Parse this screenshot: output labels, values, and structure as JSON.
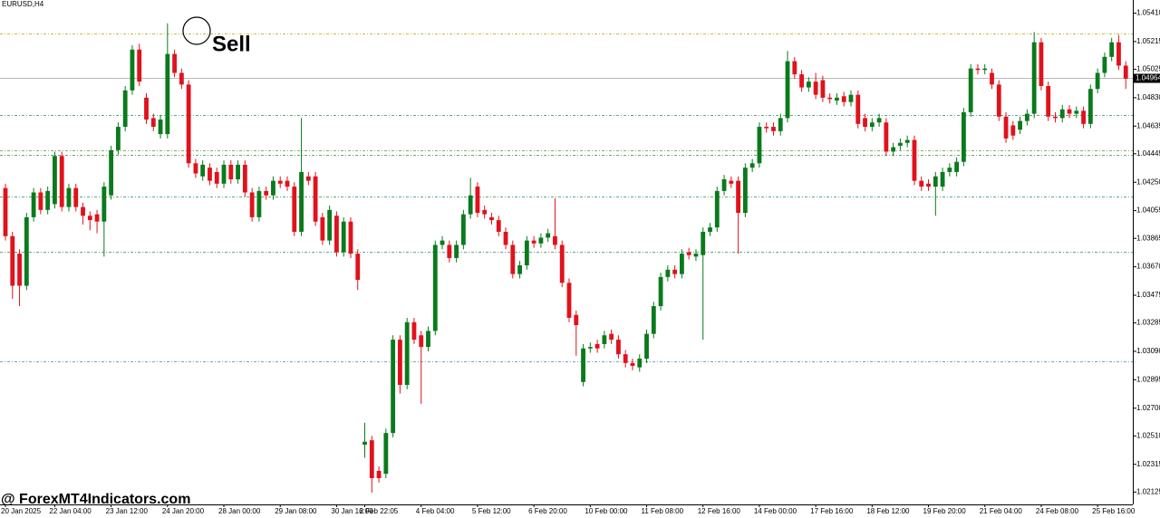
{
  "chart_data": {
    "type": "candlestick",
    "symbol": "EURUSD,H4",
    "annotation": "Sell",
    "watermark": "@ ForexMT4Indicators.com",
    "up_color": "#0a7a1c",
    "down_color": "#e0121c",
    "ylim": [
      1.0204,
      1.055
    ],
    "yticks": [
      {
        "value": 1.0541,
        "label": "1.05410"
      },
      {
        "value": 1.05215,
        "label": "1.05215"
      },
      {
        "value": 1.05025,
        "label": "1.05025"
      },
      {
        "value": 1.0483,
        "label": "1.04830"
      },
      {
        "value": 1.04635,
        "label": "1.04635"
      },
      {
        "value": 1.04445,
        "label": "1.04445"
      },
      {
        "value": 1.0425,
        "label": "1.04250"
      },
      {
        "value": 1.04055,
        "label": "1.04055"
      },
      {
        "value": 1.03865,
        "label": "1.03865"
      },
      {
        "value": 1.0367,
        "label": "1.03670"
      },
      {
        "value": 1.03475,
        "label": "1.03475"
      },
      {
        "value": 1.03285,
        "label": "1.03285"
      },
      {
        "value": 1.0309,
        "label": "1.03090"
      },
      {
        "value": 1.02895,
        "label": "1.02895"
      },
      {
        "value": 1.027,
        "label": "1.02700"
      },
      {
        "value": 1.0251,
        "label": "1.02510"
      },
      {
        "value": 1.02315,
        "label": "1.02315"
      },
      {
        "value": 1.02125,
        "label": "1.02125"
      }
    ],
    "current_price": 1.04964,
    "levels": [
      {
        "value": 1.0527,
        "color": "#b5a800"
      },
      {
        "value": 1.0471,
        "color": "#2e8b57"
      },
      {
        "value": 1.0447,
        "color": "#6b8e23"
      },
      {
        "value": 1.0444,
        "color": "#2e8b57"
      },
      {
        "value": 1.0415,
        "color": "#2e8b57"
      },
      {
        "value": 1.0377,
        "color": "#2e8b57"
      },
      {
        "value": 1.0302,
        "color": "#4682b4"
      }
    ],
    "categories": [
      "20 Jan 2025",
      null,
      null,
      null,
      null,
      null,
      null,
      "22 Jan 04:00",
      null,
      null,
      null,
      null,
      null,
      null,
      null,
      "23 Jan 12:00",
      null,
      null,
      null,
      null,
      null,
      null,
      null,
      "24 Jan 20:00",
      null,
      null,
      null,
      null,
      null,
      null,
      null,
      "28 Jan 00:00",
      null,
      null,
      null,
      null,
      null,
      null,
      null,
      "29 Jan 08:00",
      null,
      null,
      null,
      null,
      null,
      null,
      null,
      "30 Jan 16:00",
      null,
      null,
      null,
      "2 Feb 22:05",
      null,
      null,
      null,
      null,
      null,
      null,
      null,
      "4 Feb 04:00",
      null,
      null,
      null,
      null,
      null,
      null,
      null,
      "5 Feb 12:00",
      null,
      null,
      null,
      null,
      null,
      null,
      null,
      "6 Feb 20:00",
      null,
      null,
      null,
      null,
      null,
      null,
      null,
      "10 Feb 00:00",
      null,
      null,
      null,
      null,
      null,
      null,
      null,
      "11 Feb 08:00",
      null,
      null,
      null,
      null,
      null,
      null,
      null,
      "12 Feb 16:00",
      null,
      null,
      null,
      null,
      null,
      null,
      null,
      "14 Feb 00:00",
      null,
      null,
      null,
      null,
      null,
      null,
      null,
      "17 Feb 16:00",
      null,
      null,
      null,
      null,
      null,
      null,
      null,
      "18 Feb 12:00",
      null,
      null,
      null,
      null,
      null,
      null,
      null,
      "19 Feb 20:00",
      null,
      null,
      null,
      null,
      null,
      null,
      null,
      "21 Feb 04:00",
      null,
      null,
      null,
      null,
      null,
      null,
      null,
      "24 Feb 08:00",
      null,
      null,
      null,
      null,
      null,
      null,
      null,
      "25 Feb 16:00",
      null,
      null,
      null,
      null
    ],
    "open": [
      1.0421,
      1.0388,
      1.0376,
      1.0354,
      1.0401,
      1.0418,
      1.0406,
      1.041,
      1.0443,
      1.0408,
      1.0421,
      1.0408,
      1.0402,
      1.0403,
      1.0398,
      1.0416,
      1.0447,
      1.0463,
      1.0488,
      1.0516,
      1.0483,
      1.0469,
      1.0458,
      1.0458,
      1.0513,
      1.05,
      1.0492,
      1.0438,
      1.0429,
      1.0435,
      1.0432,
      1.0424,
      1.0437,
      1.0427,
      1.0437,
      1.0418,
      1.0401,
      1.0419,
      1.0416,
      1.0426,
      1.0426,
      1.0422,
      1.0391,
      1.0429,
      1.0429,
      1.0401,
      1.0385,
      1.0402,
      1.0377,
      1.0398,
      1.0376,
      1.0245,
      1.0248,
      1.0227,
      1.0225,
      1.0253,
      1.0317,
      1.0286,
      1.0329,
      1.032,
      1.0312,
      1.0323,
      1.0382,
      1.0382,
      1.0373,
      1.0382,
      1.0403,
      1.0422,
      1.0406,
      1.0401,
      1.0399,
      1.0391,
      1.0382,
      1.0362,
      1.0368,
      1.0385,
      1.0383,
      1.0387,
      1.0388,
      1.0382,
      1.0356,
      1.0334,
      1.0288,
      1.0311,
      1.0314,
      1.0314,
      1.0321,
      1.0317,
      1.0307,
      1.0301,
      1.0298,
      1.0304,
      1.0321,
      1.034,
      1.036,
      1.0365,
      1.0362,
      1.0377,
      1.0374,
      1.0375,
      1.0391,
      1.0394,
      1.0419,
      1.0426,
      1.0426,
      1.0404,
      1.0435,
      1.0438,
      1.0463,
      1.0463,
      1.046,
      1.0469,
      1.0508,
      1.0499,
      1.049,
      1.0494,
      1.0495,
      1.0483,
      1.0481,
      1.0484,
      1.048,
      1.0485,
      1.0469,
      1.0463,
      1.0466,
      1.0466,
      1.0446,
      1.045,
      1.0452,
      1.0454,
      1.0426,
      1.0424,
      1.0422,
      1.0422,
      1.0432,
      1.0432,
      1.0439,
      1.0473,
      1.0503,
      1.0502,
      1.05,
      1.0492,
      1.047,
      1.0464,
      1.0461,
      1.0467,
      1.0472,
      1.0521,
      1.0491,
      1.047,
      1.0469,
      1.0475,
      1.0472,
      1.0474,
      1.0465,
      1.0489,
      1.05,
      1.0511,
      1.0521,
      1.0505
    ],
    "high": [
      1.0424,
      1.0391,
      1.0379,
      1.0404,
      1.0421,
      1.0421,
      1.0422,
      1.0446,
      1.0446,
      1.0424,
      1.0424,
      1.0411,
      1.0405,
      1.0406,
      1.0425,
      1.045,
      1.0466,
      1.0491,
      1.0519,
      1.052,
      1.0486,
      1.0472,
      1.0471,
      1.0534,
      1.0516,
      1.0503,
      1.0495,
      1.0441,
      1.044,
      1.0438,
      1.0435,
      1.044,
      1.044,
      1.044,
      1.044,
      1.0421,
      1.0422,
      1.0422,
      1.0429,
      1.0429,
      1.0429,
      1.0425,
      1.0469,
      1.0432,
      1.0432,
      1.0404,
      1.0409,
      1.0405,
      1.0401,
      1.0401,
      1.0379,
      1.026,
      1.0251,
      1.023,
      1.0256,
      1.032,
      1.032,
      1.0332,
      1.0332,
      1.0323,
      1.0326,
      1.0385,
      1.0388,
      1.0385,
      1.0385,
      1.0406,
      1.0428,
      1.0425,
      1.0409,
      1.0404,
      1.0402,
      1.0394,
      1.0385,
      1.0371,
      1.0388,
      1.0388,
      1.039,
      1.0393,
      1.0414,
      1.0385,
      1.0359,
      1.0337,
      1.0314,
      1.0315,
      1.0317,
      1.0323,
      1.0324,
      1.032,
      1.031,
      1.0304,
      1.0307,
      1.0324,
      1.0343,
      1.0363,
      1.0368,
      1.0368,
      1.0379,
      1.038,
      1.0379,
      1.0394,
      1.0397,
      1.0422,
      1.043,
      1.0429,
      1.0429,
      1.0438,
      1.0441,
      1.0466,
      1.0466,
      1.0466,
      1.0472,
      1.0515,
      1.0511,
      1.0502,
      1.0497,
      1.05,
      1.0498,
      1.0486,
      1.0486,
      1.0487,
      1.0488,
      1.0488,
      1.0472,
      1.0469,
      1.0472,
      1.0469,
      1.0452,
      1.0455,
      1.0457,
      1.0457,
      1.0429,
      1.0427,
      1.0432,
      1.0435,
      1.0438,
      1.0442,
      1.0476,
      1.0506,
      1.0506,
      1.0506,
      1.0503,
      1.0495,
      1.0473,
      1.0467,
      1.047,
      1.0475,
      1.0528,
      1.0524,
      1.0494,
      1.0473,
      1.0478,
      1.0478,
      1.0477,
      1.0477,
      1.0492,
      1.0503,
      1.0514,
      1.0524,
      1.0526,
      1.0508
    ],
    "low": [
      1.0385,
      1.0345,
      1.034,
      1.0351,
      1.0398,
      1.0403,
      1.0403,
      1.0407,
      1.0405,
      1.0405,
      1.0405,
      1.0396,
      1.0392,
      1.039,
      1.0374,
      1.0413,
      1.0444,
      1.046,
      1.0485,
      1.0491,
      1.0465,
      1.046,
      1.0455,
      1.0455,
      1.0497,
      1.0489,
      1.0435,
      1.0428,
      1.0426,
      1.0423,
      1.0421,
      1.0421,
      1.0424,
      1.0424,
      1.0415,
      1.0398,
      1.0398,
      1.0413,
      1.0413,
      1.0421,
      1.0419,
      1.0388,
      1.0388,
      1.0423,
      1.0395,
      1.0382,
      1.0382,
      1.0374,
      1.0374,
      1.0373,
      1.0351,
      1.0236,
      1.0212,
      1.0219,
      1.0222,
      1.025,
      1.028,
      1.0283,
      1.0314,
      1.0273,
      1.0309,
      1.032,
      1.0379,
      1.037,
      1.037,
      1.0379,
      1.04,
      1.0401,
      1.04,
      1.0396,
      1.0388,
      1.0379,
      1.0359,
      1.0359,
      1.0365,
      1.038,
      1.038,
      1.0384,
      1.0379,
      1.0353,
      1.0329,
      1.0306,
      1.0285,
      1.0308,
      1.0308,
      1.0311,
      1.0314,
      1.0304,
      1.0298,
      1.0296,
      1.0295,
      1.0301,
      1.0318,
      1.0337,
      1.0357,
      1.0359,
      1.0359,
      1.0372,
      1.0371,
      1.0317,
      1.0388,
      1.0391,
      1.0416,
      1.0421,
      1.0376,
      1.0401,
      1.0432,
      1.0435,
      1.0459,
      1.0457,
      1.0457,
      1.0466,
      1.0496,
      1.0487,
      1.0487,
      1.0482,
      1.048,
      1.0479,
      1.0478,
      1.0477,
      1.0477,
      1.0462,
      1.046,
      1.046,
      1.0463,
      1.0443,
      1.0443,
      1.0447,
      1.0449,
      1.0423,
      1.0419,
      1.0419,
      1.0402,
      1.0419,
      1.0429,
      1.0429,
      1.0436,
      1.047,
      1.0499,
      1.0499,
      1.0489,
      1.0467,
      1.0452,
      1.0454,
      1.0458,
      1.0464,
      1.0469,
      1.0488,
      1.0467,
      1.0466,
      1.0466,
      1.0469,
      1.0469,
      1.0462,
      1.0462,
      1.0486,
      1.0497,
      1.0508,
      1.0502,
      1.0489
    ],
    "close": [
      1.0388,
      1.0354,
      1.0354,
      1.0401,
      1.0418,
      1.0406,
      1.0419,
      1.0443,
      1.0408,
      1.0421,
      1.0408,
      1.0402,
      1.0399,
      1.0398,
      1.0422,
      1.0447,
      1.0463,
      1.0488,
      1.0516,
      1.0494,
      1.0468,
      1.0463,
      1.0468,
      1.0513,
      1.05,
      1.0492,
      1.0438,
      1.0431,
      1.0437,
      1.0426,
      1.0424,
      1.0437,
      1.0427,
      1.0437,
      1.0418,
      1.0401,
      1.0419,
      1.0416,
      1.0426,
      1.0424,
      1.0422,
      1.0391,
      1.0432,
      1.0426,
      1.0398,
      1.0385,
      1.0406,
      1.0377,
      1.0398,
      1.0376,
      1.0358,
      1.0247,
      1.0222,
      1.0222,
      1.0253,
      1.0317,
      1.0286,
      1.0329,
      1.0317,
      1.0312,
      1.0323,
      1.0382,
      1.0385,
      1.0373,
      1.0382,
      1.0403,
      1.0416,
      1.0404,
      1.0403,
      1.0399,
      1.0391,
      1.0382,
      1.0362,
      1.0368,
      1.0385,
      1.0383,
      1.0387,
      1.039,
      1.0382,
      1.0356,
      1.0332,
      1.0327,
      1.0311,
      1.0312,
      1.0311,
      1.032,
      1.0317,
      1.0307,
      1.0301,
      1.0299,
      1.0304,
      1.0321,
      1.034,
      1.036,
      1.0365,
      1.0362,
      1.0376,
      1.0375,
      1.0376,
      1.0391,
      1.0394,
      1.0419,
      1.0427,
      1.0424,
      1.0404,
      1.0435,
      1.0438,
      1.0463,
      1.0462,
      1.046,
      1.0469,
      1.0508,
      1.0499,
      1.049,
      1.0494,
      1.0485,
      1.0483,
      1.0482,
      1.0483,
      1.048,
      1.0485,
      1.0465,
      1.0463,
      1.0466,
      1.0469,
      1.0446,
      1.0449,
      1.0452,
      1.0454,
      1.0426,
      1.0422,
      1.0422,
      1.0429,
      1.0432,
      1.0435,
      1.0439,
      1.0473,
      1.0503,
      1.0502,
      1.0503,
      1.0492,
      1.047,
      1.0455,
      1.0457,
      1.0467,
      1.0472,
      1.0521,
      1.0491,
      1.047,
      1.0469,
      1.0475,
      1.0472,
      1.0474,
      1.0465,
      1.0489,
      1.05,
      1.0511,
      1.0521,
      1.0505,
      1.0496
    ]
  }
}
